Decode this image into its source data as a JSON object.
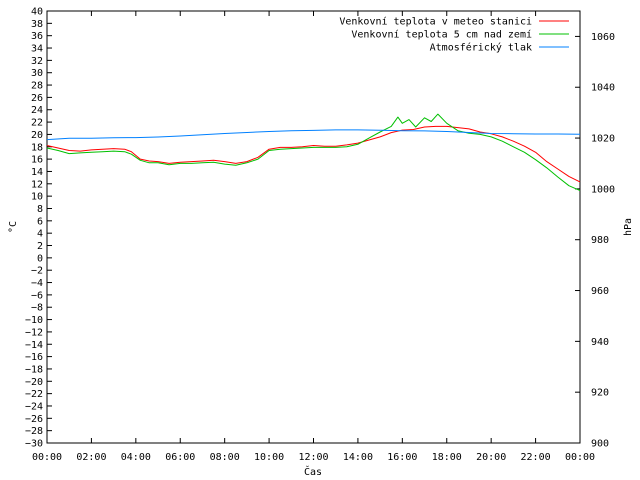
{
  "chart_data": {
    "type": "line",
    "title": "",
    "xlabel": "Čas",
    "ylabel_left": "°C",
    "ylabel_right": "hPa",
    "ylim_left": [
      -30,
      40
    ],
    "ylim_right": [
      900,
      1070
    ],
    "y_ticks_left": [
      40,
      38,
      36,
      34,
      32,
      30,
      28,
      26,
      24,
      22,
      20,
      18,
      16,
      14,
      12,
      10,
      8,
      6,
      4,
      2,
      0,
      -2,
      -4,
      -6,
      -8,
      -10,
      -12,
      -14,
      -16,
      -18,
      -20,
      -22,
      -24,
      -26,
      -28,
      -30
    ],
    "y_tick_labels_left": [
      "40",
      "38",
      "36",
      "34",
      "32",
      "30",
      "28",
      "26",
      "24",
      "22",
      "20",
      "18",
      "16",
      "14",
      "12",
      "10",
      "8",
      "6",
      "4",
      "2",
      "0",
      "−2",
      "−4",
      "−6",
      "−8",
      "−10",
      "−12",
      "−14",
      "−16",
      "−18",
      "−20",
      "−22",
      "−24",
      "−26",
      "−28",
      "−30"
    ],
    "y_ticks_right": [
      1060,
      1040,
      1020,
      1000,
      980,
      960,
      940,
      920,
      900
    ],
    "x_ticks": [
      0,
      2,
      4,
      6,
      8,
      10,
      12,
      14,
      16,
      18,
      20,
      22,
      24
    ],
    "x_tick_labels": [
      "00:00",
      "02:00",
      "04:00",
      "06:00",
      "08:00",
      "10:00",
      "12:00",
      "14:00",
      "16:00",
      "18:00",
      "20:00",
      "22:00",
      "00:00"
    ],
    "xlim": [
      0,
      24
    ],
    "grid": false,
    "legend_position": "top-right",
    "series": [
      {
        "name": "Venkovní teplota v meteo stanici",
        "color": "#ff0000",
        "axis": "left",
        "x": [
          0,
          0.5,
          1,
          1.5,
          2,
          2.5,
          3,
          3.5,
          3.8,
          4.2,
          4.6,
          5,
          5.5,
          6,
          6.5,
          7,
          7.5,
          8,
          8.5,
          9,
          9.5,
          10,
          10.5,
          11,
          11.5,
          12,
          12.5,
          13,
          13.5,
          14,
          14.5,
          15,
          15.5,
          16,
          16.5,
          17,
          17.5,
          18,
          18.5,
          19,
          19.5,
          20,
          20.5,
          21,
          21.5,
          22,
          22.5,
          23,
          23.5,
          24
        ],
        "y": [
          18.2,
          17.8,
          17.4,
          17.3,
          17.5,
          17.6,
          17.7,
          17.6,
          17.2,
          16,
          15.7,
          15.6,
          15.3,
          15.5,
          15.6,
          15.7,
          15.8,
          15.6,
          15.3,
          15.6,
          16.3,
          17.6,
          17.9,
          17.9,
          18,
          18.2,
          18.1,
          18.1,
          18.3,
          18.6,
          19.1,
          19.6,
          20.3,
          20.7,
          20.8,
          21.2,
          21.3,
          21.3,
          21.1,
          20.9,
          20.4,
          20.1,
          19.6,
          18.9,
          18.1,
          17.1,
          15.6,
          14.4,
          13.2,
          12.3
        ]
      },
      {
        "name": "Venkovní teplota 5 cm nad zemí",
        "color": "#00c000",
        "axis": "left",
        "x": [
          0,
          0.5,
          1,
          1.5,
          2,
          2.5,
          3,
          3.5,
          3.8,
          4.2,
          4.6,
          5,
          5.5,
          6,
          6.5,
          7,
          7.5,
          8,
          8.5,
          9,
          9.5,
          10,
          10.5,
          11,
          11.5,
          12,
          12.5,
          13,
          13.5,
          14,
          14.5,
          15,
          15.5,
          15.8,
          16,
          16.3,
          16.6,
          17,
          17.3,
          17.6,
          18,
          18.5,
          19,
          19.5,
          20,
          20.5,
          21,
          21.5,
          22,
          22.5,
          23,
          23.5,
          24
        ],
        "y": [
          17.8,
          17.4,
          16.9,
          17,
          17.1,
          17.2,
          17.3,
          17.2,
          16.8,
          15.8,
          15.4,
          15.4,
          15.1,
          15.3,
          15.3,
          15.4,
          15.5,
          15.2,
          15,
          15.4,
          16,
          17.4,
          17.6,
          17.7,
          17.8,
          17.9,
          17.9,
          17.9,
          18,
          18.4,
          19.4,
          20.4,
          21.3,
          22.8,
          21.8,
          22.4,
          21.2,
          22.7,
          22.1,
          23.3,
          21.8,
          20.6,
          20.2,
          20,
          19.6,
          18.9,
          18,
          17.1,
          15.9,
          14.6,
          13.1,
          11.7,
          10.9
        ]
      },
      {
        "name": "Atmosférický tlak",
        "color": "#0080ff",
        "axis": "right",
        "x": [
          0,
          1,
          2,
          3,
          4,
          5,
          6,
          7,
          8,
          9,
          10,
          11,
          12,
          13,
          14,
          15,
          16,
          17,
          18,
          19,
          20,
          21,
          22,
          23,
          24
        ],
        "y": [
          1019.4,
          1019.9,
          1019.9,
          1020.1,
          1020.2,
          1020.4,
          1020.8,
          1021.3,
          1021.8,
          1022.2,
          1022.6,
          1022.9,
          1023,
          1023.2,
          1023.2,
          1023.1,
          1022.9,
          1022.8,
          1022.6,
          1022.2,
          1021.8,
          1021.7,
          1021.6,
          1021.6,
          1021.5
        ]
      }
    ]
  }
}
